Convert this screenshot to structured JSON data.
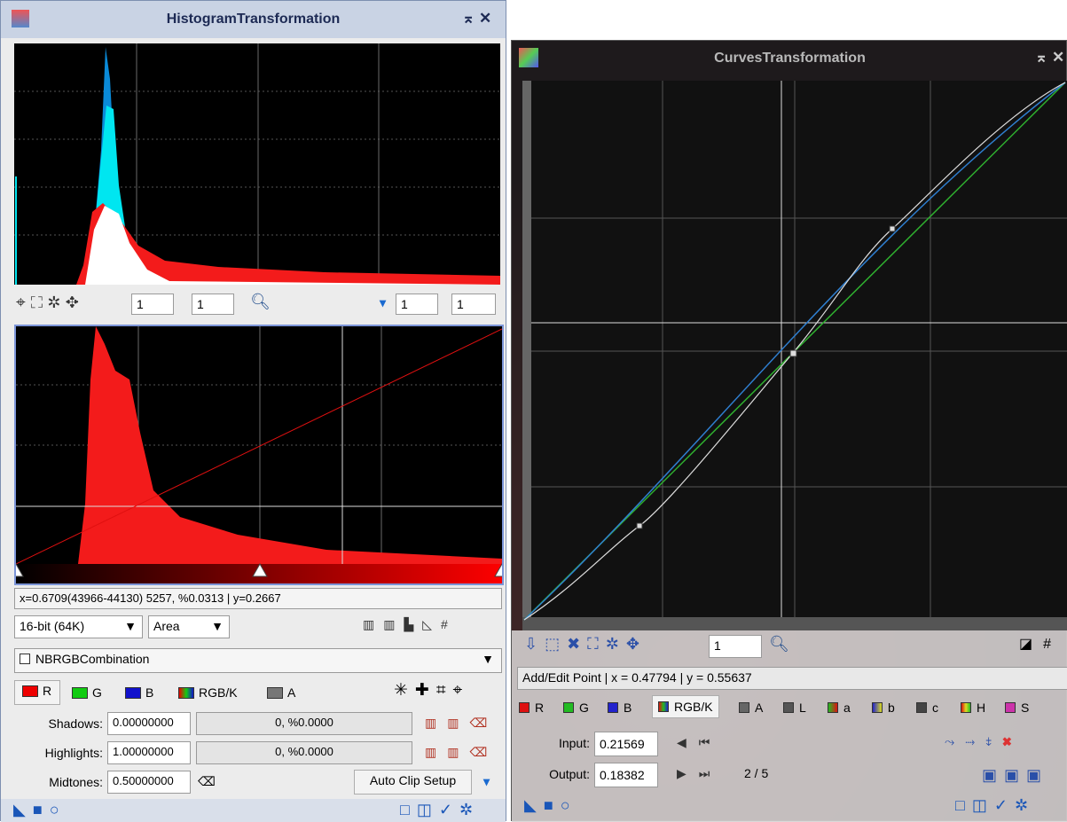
{
  "histogram_window": {
    "title": "HistogramTransformation",
    "zoom": [
      "1",
      "1",
      "1",
      "1"
    ],
    "readout": "x=0.6709(43966-44130) 5257, %0.0313 | y=0.2667",
    "bit_depth": "16-bit (64K)",
    "graph_style": "Area",
    "view": "NBRGBCombination",
    "channels": [
      "R",
      "G",
      "B",
      "RGB/K",
      "A"
    ],
    "shadows": {
      "label": "Shadows:",
      "value": "0.00000000",
      "clip": "0, %0.0000"
    },
    "highlights": {
      "label": "Highlights:",
      "value": "1.00000000",
      "clip": "0, %0.0000"
    },
    "midtones": {
      "label": "Midtones:",
      "value": "0.50000000"
    },
    "auto_clip": "Auto Clip Setup"
  },
  "curves_window": {
    "title": "CurvesTransformation",
    "zoom": "1",
    "readout": "Add/Edit Point | x = 0.47794 | y = 0.55637",
    "channels": [
      "R",
      "G",
      "B",
      "RGB/K",
      "A",
      "L",
      "a",
      "b",
      "c",
      "H",
      "S"
    ],
    "input": {
      "label": "Input:",
      "value": "0.21569"
    },
    "output": {
      "label": "Output:",
      "value": "0.18382"
    },
    "point_index": "2 / 5"
  }
}
